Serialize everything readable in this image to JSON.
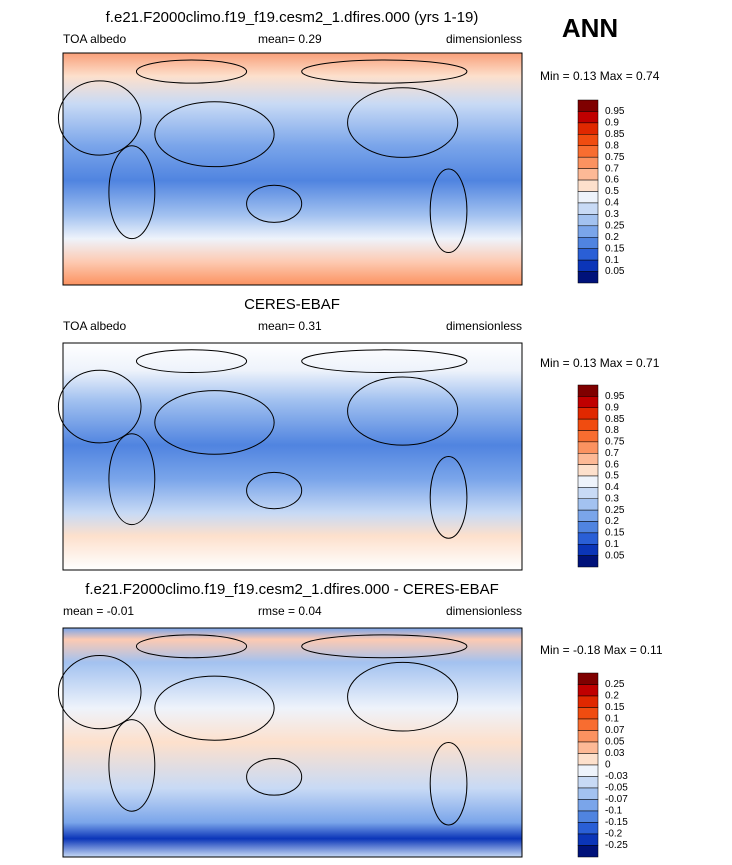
{
  "ann_label": "ANN",
  "panels": [
    {
      "title": "f.e21.F2000climo.f19_f19.cesm2_1.dfires.000 (yrs 1-19)",
      "left": "TOA albedo",
      "center": "mean=  0.29",
      "right": "dimensionless",
      "minmax": "Min =  0.13 Max =  0.74",
      "colorbar": [
        "0.95",
        "0.9",
        "0.85",
        "0.8",
        "0.75",
        "0.7",
        "0.6",
        "0.5",
        "0.4",
        "0.3",
        "0.25",
        "0.2",
        "0.15",
        "0.1",
        "0.05"
      ]
    },
    {
      "title": "CERES-EBAF",
      "left": "TOA albedo",
      "center": "mean=  0.31",
      "right": "dimensionless",
      "minmax": "Min =  0.13 Max =  0.71",
      "colorbar": [
        "0.95",
        "0.9",
        "0.85",
        "0.8",
        "0.75",
        "0.7",
        "0.6",
        "0.5",
        "0.4",
        "0.3",
        "0.25",
        "0.2",
        "0.15",
        "0.1",
        "0.05"
      ]
    },
    {
      "title": "f.e21.F2000climo.f19_f19.cesm2_1.dfires.000 - CERES-EBAF",
      "left": "mean =  -0.01",
      "center": "rmse =  0.04",
      "right": "dimensionless",
      "minmax": "Min =  -0.18 Max =  0.11",
      "colorbar": [
        "0.25",
        "0.2",
        "0.15",
        "0.1",
        "0.07",
        "0.05",
        "0.03",
        "0",
        "-0.03",
        "-0.05",
        "-0.07",
        "-0.1",
        "-0.15",
        "-0.2",
        "-0.25"
      ]
    }
  ]
}
